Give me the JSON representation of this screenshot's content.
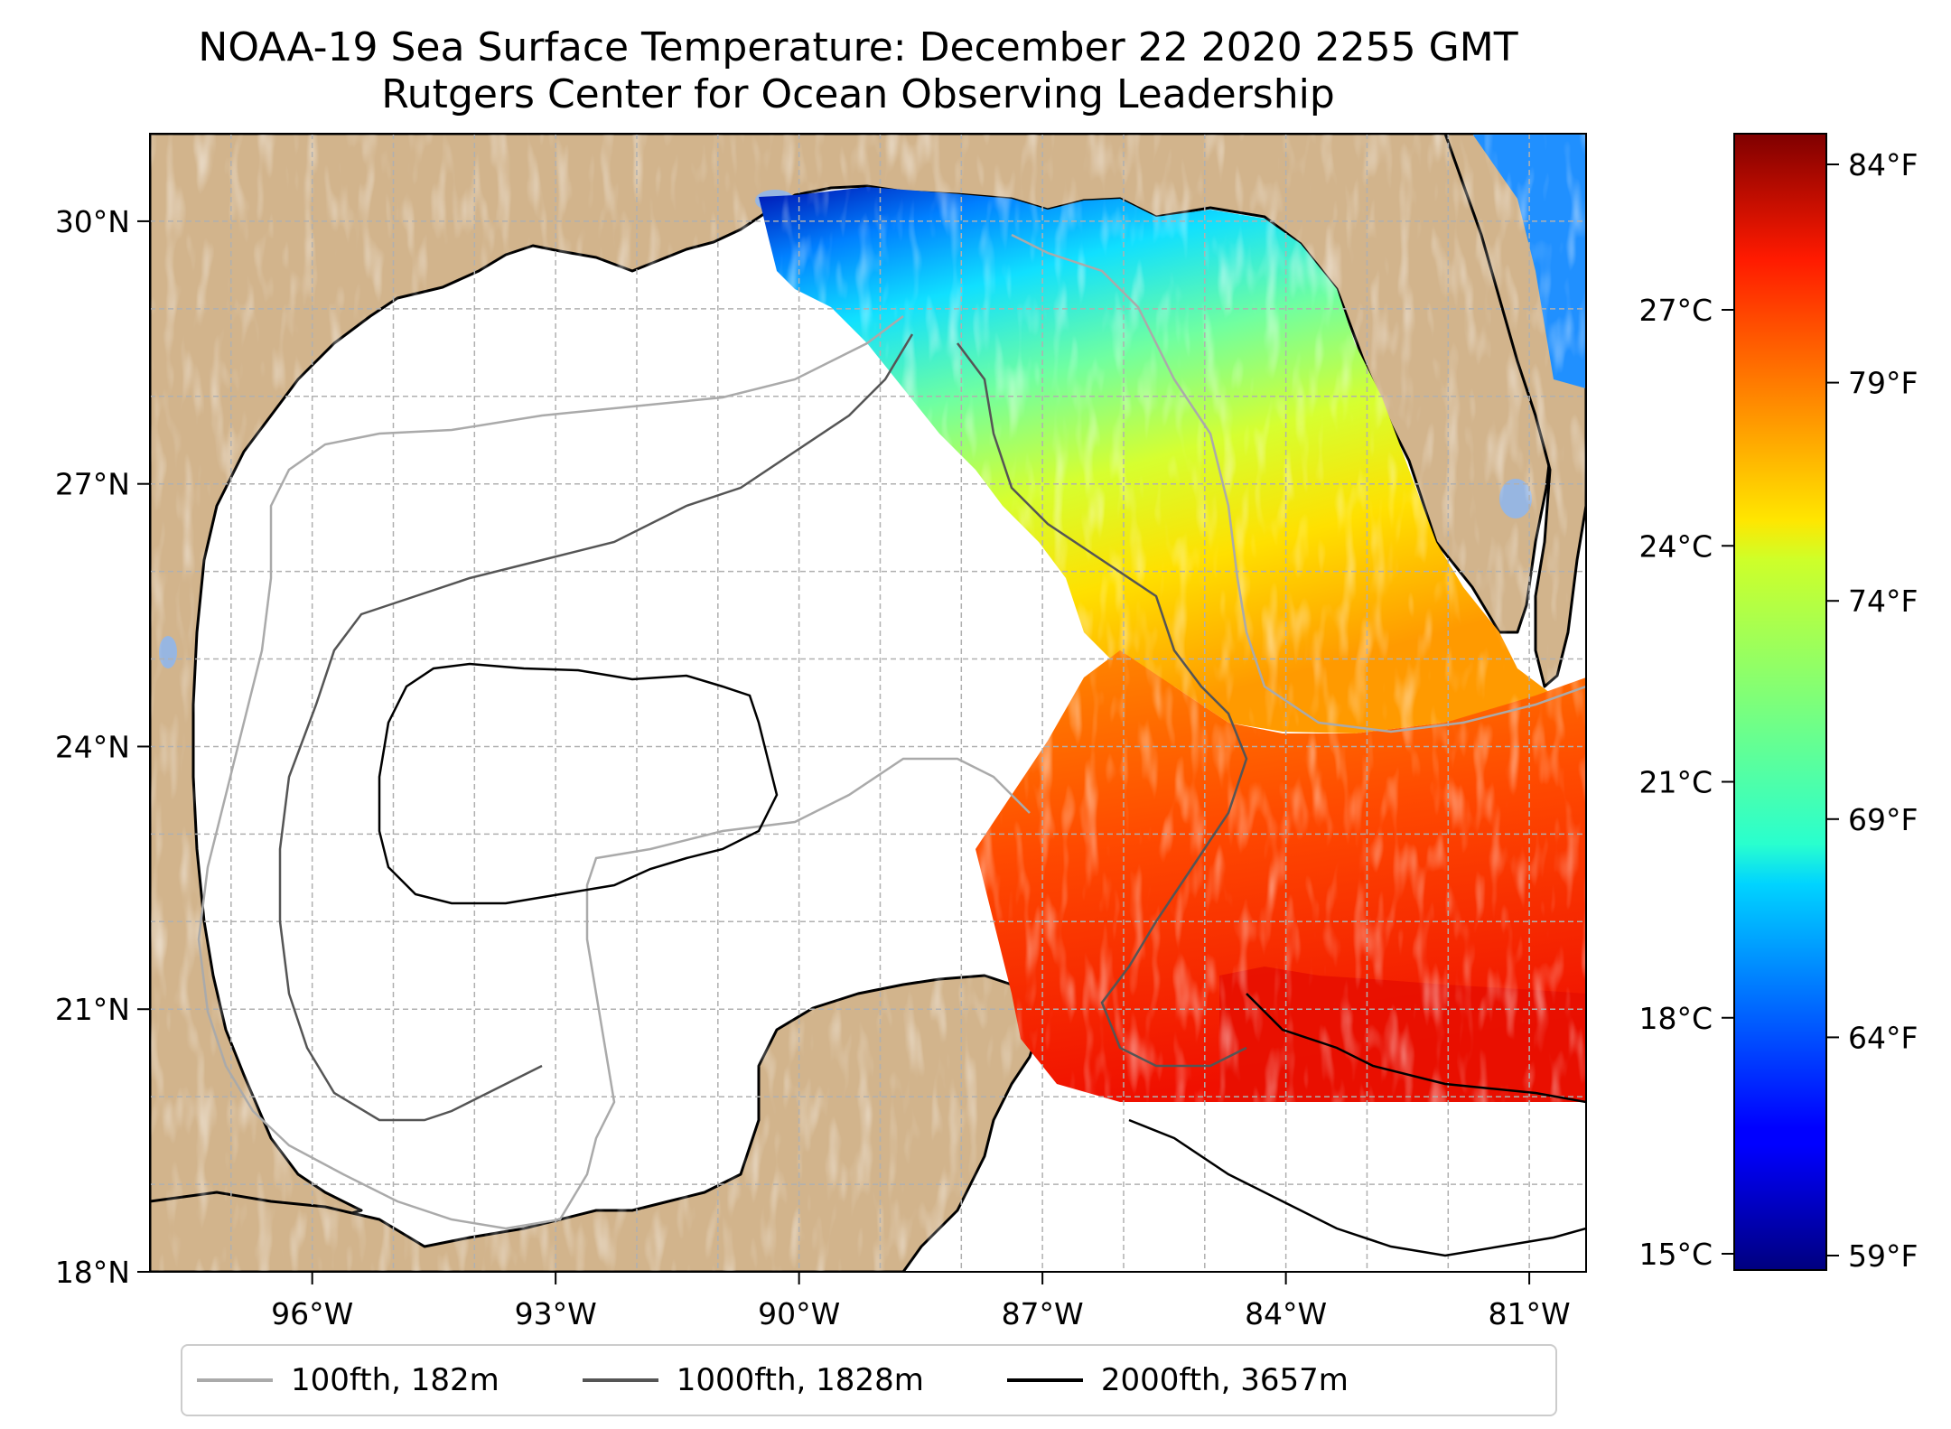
{
  "title": "NOAA-19 Sea Surface Temperature: December 22 2020 2255 GMT",
  "subtitle": "Rutgers Center for Ocean Observing Leadership",
  "map": {
    "lon_range": [
      -98,
      -80.3
    ],
    "lat_range": [
      18,
      31
    ],
    "lon_ticks": [
      {
        "value": -96,
        "label": "96°W"
      },
      {
        "value": -93,
        "label": "93°W"
      },
      {
        "value": -90,
        "label": "90°W"
      },
      {
        "value": -87,
        "label": "87°W"
      },
      {
        "value": -84,
        "label": "84°W"
      },
      {
        "value": -81,
        "label": "81°W"
      }
    ],
    "lat_ticks": [
      {
        "value": 18,
        "label": "18°N"
      },
      {
        "value": 21,
        "label": "21°N"
      },
      {
        "value": 24,
        "label": "24°N"
      },
      {
        "value": 27,
        "label": "27°N"
      },
      {
        "value": 30,
        "label": "30°N"
      }
    ],
    "gridlines": true,
    "land_color": "#d2b48c",
    "lake_color": "#97b6e1"
  },
  "colorbar": {
    "colormap": "jet",
    "celsius_ticks": [
      {
        "value": 15,
        "label": "15°C"
      },
      {
        "value": 18,
        "label": "18°C"
      },
      {
        "value": 21,
        "label": "21°C"
      },
      {
        "value": 24,
        "label": "24°C"
      },
      {
        "value": 27,
        "label": "27°C"
      }
    ],
    "fahrenheit_ticks": [
      {
        "value": 59,
        "label": "59°F"
      },
      {
        "value": 64,
        "label": "64°F"
      },
      {
        "value": 69,
        "label": "69°F"
      },
      {
        "value": 74,
        "label": "74°F"
      },
      {
        "value": 79,
        "label": "79°F"
      },
      {
        "value": 84,
        "label": "84°F"
      }
    ]
  },
  "legend": [
    {
      "label": "100fth, 182m",
      "color": "#aaaaaa"
    },
    {
      "label": "1000fth, 1828m",
      "color": "#555555"
    },
    {
      "label": "2000fth, 3657m",
      "color": "#000000"
    }
  ]
}
